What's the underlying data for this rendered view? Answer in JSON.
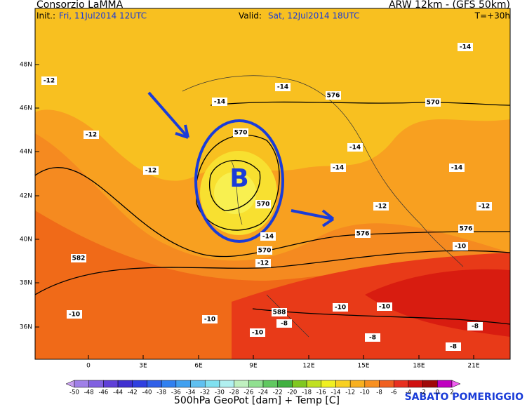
{
  "header": {
    "title": "Consorzio LaMMA",
    "init_label": "Init.:",
    "init": "Fri, 11Jul2014 12UTC",
    "model": "ARW 12km - (GFS 50km)",
    "valid_label": "Valid:",
    "valid": "Sat, 12Jul2014 18UTC",
    "lead": "T=+30h"
  },
  "map": {
    "lat_labels": [
      "48N",
      "46N",
      "44N",
      "42N",
      "40N",
      "38N",
      "36N"
    ],
    "lon_labels": [
      "0",
      "3E",
      "6E",
      "9E",
      "12E",
      "15E",
      "18E",
      "21E"
    ],
    "low_label": "B",
    "contour_labels": [
      "-12",
      "-14",
      "576",
      "-14",
      "570",
      "-14",
      "-12",
      "570",
      "-14",
      "-12",
      "-14",
      "-14",
      "570",
      "-12",
      "-12",
      "576",
      "576",
      "-14",
      "-10",
      "570",
      "-12",
      "582",
      "-10",
      "-10",
      "588",
      "-8",
      "-10",
      "-10",
      "-8",
      "-10",
      "-8",
      "-8"
    ]
  },
  "legend": {
    "labels": [
      -50,
      -48,
      -46,
      -44,
      -42,
      -40,
      -38,
      -36,
      -34,
      -32,
      -30,
      -28,
      -26,
      -24,
      -22,
      -20,
      -18,
      -16,
      -14,
      -12,
      -10,
      -8,
      -6,
      -4,
      -2,
      0,
      2
    ],
    "colors": [
      "#c8a0f0",
      "#a080e8",
      "#8060e0",
      "#6040d8",
      "#4030d0",
      "#3040e0",
      "#3060e8",
      "#3080f0",
      "#40a0f0",
      "#60c0f0",
      "#80e0f0",
      "#b0f0f0",
      "#c0f0c0",
      "#90e090",
      "#60c860",
      "#40b040",
      "#80c820",
      "#c0e020",
      "#f0f020",
      "#f8d020",
      "#f8b020",
      "#f89020",
      "#f06020",
      "#e83020",
      "#d01010",
      "#a00808",
      "#c000c0",
      "#f060f0"
    ],
    "caption": "500hPa GeoPot [dam] + Temp [C]"
  },
  "footer": {
    "note": "SABATO POMERIGGIO"
  }
}
